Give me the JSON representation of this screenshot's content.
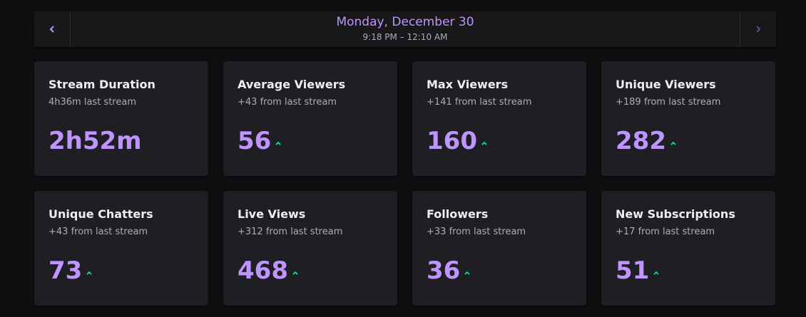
{
  "header": {
    "date": "Monday, December 30",
    "time_range": "9:18 PM – 12:10 AM"
  },
  "cards": [
    {
      "title": "Stream Duration",
      "subtitle": "4h36m last stream",
      "value": "2h52m",
      "trend": null
    },
    {
      "title": "Average Viewers",
      "subtitle": "+43 from last stream",
      "value": "56",
      "trend": "up"
    },
    {
      "title": "Max Viewers",
      "subtitle": "+141 from last stream",
      "value": "160",
      "trend": "up"
    },
    {
      "title": "Unique Viewers",
      "subtitle": "+189 from last stream",
      "value": "282",
      "trend": "up"
    },
    {
      "title": "Unique Chatters",
      "subtitle": "+43 from last stream",
      "value": "73",
      "trend": "up"
    },
    {
      "title": "Live Views",
      "subtitle": "+312 from last stream",
      "value": "468",
      "trend": "up"
    },
    {
      "title": "Followers",
      "subtitle": "+33 from last stream",
      "value": "36",
      "trend": "up"
    },
    {
      "title": "New Subscriptions",
      "subtitle": "+17 from last stream",
      "value": "51",
      "trend": "up"
    }
  ]
}
